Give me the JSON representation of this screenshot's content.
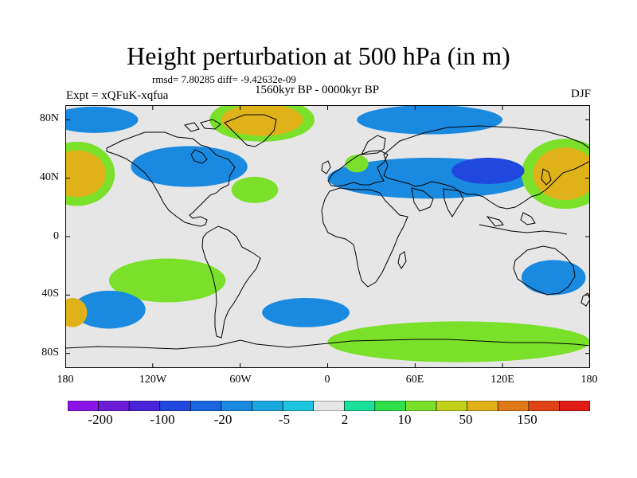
{
  "title": "Height perturbation at 500 hPa (in m)",
  "rmsd_line": "rmsd= 7.80285 diff= -9.42632e-09",
  "period": "1560kyr BP - 0000kyr BP",
  "experiment": "Expt = xQFuK-xqfua",
  "season": "DJF",
  "lat_labels": [
    "80N",
    "40N",
    "0",
    "40S",
    "80S"
  ],
  "lon_labels": [
    "180",
    "120W",
    "60W",
    "0",
    "60E",
    "120E",
    "180"
  ],
  "colorbar": {
    "colors": [
      "#8a14e6",
      "#6a1cd6",
      "#4a24d8",
      "#2048de",
      "#1a66e0",
      "#1a8ae0",
      "#1aa8e0",
      "#1ec4e0",
      "#e6e6e6",
      "#1ae09a",
      "#2ee04a",
      "#7ae02a",
      "#c2d21a",
      "#e0b21a",
      "#e07a16",
      "#e04416",
      "#e01a14"
    ],
    "labels": [
      "-200",
      "-100",
      "-20",
      "-5",
      "2",
      "10",
      "50",
      "150"
    ]
  },
  "chart_data": {
    "type": "heatmap",
    "title": "Height perturbation at 500 hPa (in m)",
    "xlim": [
      -180,
      180
    ],
    "ylim": [
      -90,
      90
    ],
    "x_ticks": [
      -180,
      -120,
      -60,
      0,
      60,
      120,
      180
    ],
    "y_ticks": [
      80,
      40,
      0,
      -40,
      -80
    ],
    "anomalies": [
      {
        "lon": -45,
        "lat": 80,
        "rx": 28,
        "ry": 11,
        "value": 50
      },
      {
        "lon": -45,
        "lat": 80,
        "rx": 36,
        "ry": 15,
        "value": 10
      },
      {
        "lon": -172,
        "lat": 43,
        "rx": 20,
        "ry": 16,
        "value": 50
      },
      {
        "lon": -172,
        "lat": 43,
        "rx": 26,
        "ry": 22,
        "value": 10
      },
      {
        "lon": 163,
        "lat": 43,
        "rx": 22,
        "ry": 18,
        "value": 50
      },
      {
        "lon": 163,
        "lat": 43,
        "rx": 30,
        "ry": 24,
        "value": 10
      },
      {
        "lon": -50,
        "lat": 32,
        "rx": 16,
        "ry": 9,
        "value": 10
      },
      {
        "lon": 20,
        "lat": 50,
        "rx": 8,
        "ry": 6,
        "value": 10
      },
      {
        "lon": -160,
        "lat": 80,
        "rx": 30,
        "ry": 9,
        "value": -20
      },
      {
        "lon": 70,
        "lat": 80,
        "rx": 50,
        "ry": 10,
        "value": -20
      },
      {
        "lon": -95,
        "lat": 48,
        "rx": 40,
        "ry": 14,
        "value": -20
      },
      {
        "lon": 70,
        "lat": 40,
        "rx": 70,
        "ry": 14,
        "value": -20
      },
      {
        "lon": 110,
        "lat": 45,
        "rx": 25,
        "ry": 9,
        "value": -100
      },
      {
        "lon": -150,
        "lat": -50,
        "rx": 25,
        "ry": 13,
        "value": -20
      },
      {
        "lon": -15,
        "lat": -52,
        "rx": 30,
        "ry": 10,
        "value": -20
      },
      {
        "lon": 155,
        "lat": -28,
        "rx": 22,
        "ry": 12,
        "value": -20
      },
      {
        "lon": -110,
        "lat": -30,
        "rx": 40,
        "ry": 15,
        "value": 10
      },
      {
        "lon": 90,
        "lat": -72,
        "rx": 90,
        "ry": 14,
        "value": 10
      },
      {
        "lon": -175,
        "lat": -52,
        "rx": 10,
        "ry": 10,
        "value": 50
      }
    ]
  }
}
